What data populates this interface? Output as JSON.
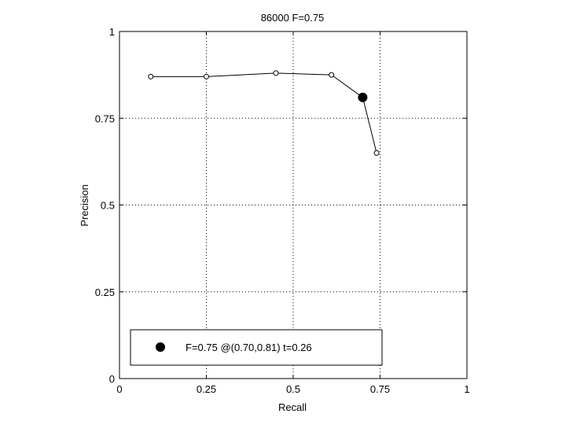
{
  "chart_data": {
    "type": "line",
    "title": "86000 F=0.75",
    "xlabel": "Recall",
    "ylabel": "Precision",
    "xlim": [
      0,
      1
    ],
    "ylim": [
      0,
      1
    ],
    "grid": true,
    "x_ticks": [
      0,
      0.25,
      0.5,
      0.75,
      1
    ],
    "x_tick_labels": [
      "0",
      "0.25",
      "0.5",
      "0.75",
      "1"
    ],
    "y_ticks": [
      0,
      0.25,
      0.5,
      0.75,
      1
    ],
    "y_tick_labels": [
      "0",
      "0.25",
      "0.5",
      "0.75",
      "1"
    ],
    "series": [
      {
        "x": [
          0.09,
          0.25,
          0.45,
          0.61,
          0.7,
          0.74
        ],
        "y": [
          0.87,
          0.87,
          0.88,
          0.875,
          0.81,
          0.65
        ],
        "marker": "open-circle",
        "color": "#000000"
      }
    ],
    "highlight_point": {
      "x": 0.7,
      "y": 0.81,
      "marker": "filled-circle"
    },
    "legend": {
      "position": "bottom-left",
      "entries": [
        {
          "label": "F=0.75 @(0.70,0.81) t=0.26",
          "marker": "filled-circle"
        }
      ]
    }
  }
}
